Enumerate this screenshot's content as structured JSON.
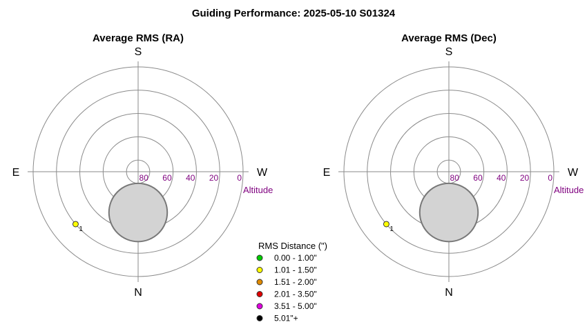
{
  "page_title": "Guiding Performance: 2025-05-10 S01324",
  "chart_data": [
    {
      "type": "polar-scatter",
      "title": "Average RMS (RA)",
      "directions": {
        "top": "S",
        "bottom": "N",
        "left": "E",
        "right": "W"
      },
      "altitude_ticks": [
        "80",
        "60",
        "40",
        "20",
        "0"
      ],
      "altitude_axis_label": "Altitude",
      "altitude_rings": [
        80,
        60,
        40,
        20,
        0
      ],
      "obstruction": {
        "azimuth_deg": 0,
        "altitude_deg": 55,
        "radius_deg": 25
      },
      "points": [
        {
          "label": "1",
          "azimuth_deg": 50,
          "altitude_deg": 20,
          "rms_bin": "1.01 - 1.50\"",
          "color": "#ffff00"
        }
      ]
    },
    {
      "type": "polar-scatter",
      "title": "Average RMS (Dec)",
      "directions": {
        "top": "S",
        "bottom": "N",
        "left": "E",
        "right": "W"
      },
      "altitude_ticks": [
        "80",
        "60",
        "40",
        "20",
        "0"
      ],
      "altitude_axis_label": "Altitude",
      "altitude_rings": [
        80,
        60,
        40,
        20,
        0
      ],
      "obstruction": {
        "azimuth_deg": 0,
        "altitude_deg": 55,
        "radius_deg": 25
      },
      "points": [
        {
          "label": "1",
          "azimuth_deg": 50,
          "altitude_deg": 20,
          "rms_bin": "1.01 - 1.50\"",
          "color": "#ffff00"
        }
      ]
    }
  ],
  "legend": {
    "title": "RMS Distance (\")",
    "items": [
      {
        "label": "0.00 - 1.00\"",
        "color": "#00cc00"
      },
      {
        "label": "1.01 - 1.50\"",
        "color": "#ffff00"
      },
      {
        "label": "1.51 - 2.00\"",
        "color": "#e08a00"
      },
      {
        "label": "2.01 - 3.50\"",
        "color": "#e00000"
      },
      {
        "label": "3.51 - 5.00\"",
        "color": "#e000e0"
      },
      {
        "label": "5.01\"+",
        "color": "#000000"
      }
    ]
  }
}
